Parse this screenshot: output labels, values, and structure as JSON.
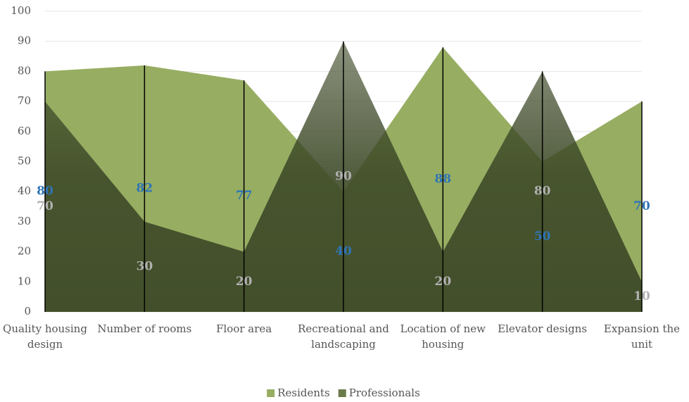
{
  "chart_data": {
    "type": "area",
    "categories": [
      "Quality housing design",
      "Number of rooms",
      "Floor area",
      "Recreational and landscaping",
      "Location of new housing",
      "Elevator designs",
      "Expansion the unit"
    ],
    "series": [
      {
        "name": "Residents",
        "color": "#97ad62",
        "values": [
          80,
          82,
          77,
          40,
          88,
          50,
          70
        ]
      },
      {
        "name": "Professionals",
        "color": "#3e4a28",
        "values": [
          70,
          30,
          20,
          90,
          20,
          80,
          10
        ]
      }
    ],
    "ylim": [
      0,
      100
    ],
    "yticks": [
      0,
      10,
      20,
      30,
      40,
      50,
      60,
      70,
      80,
      90,
      100
    ],
    "grid": true,
    "legend": "bottom"
  }
}
